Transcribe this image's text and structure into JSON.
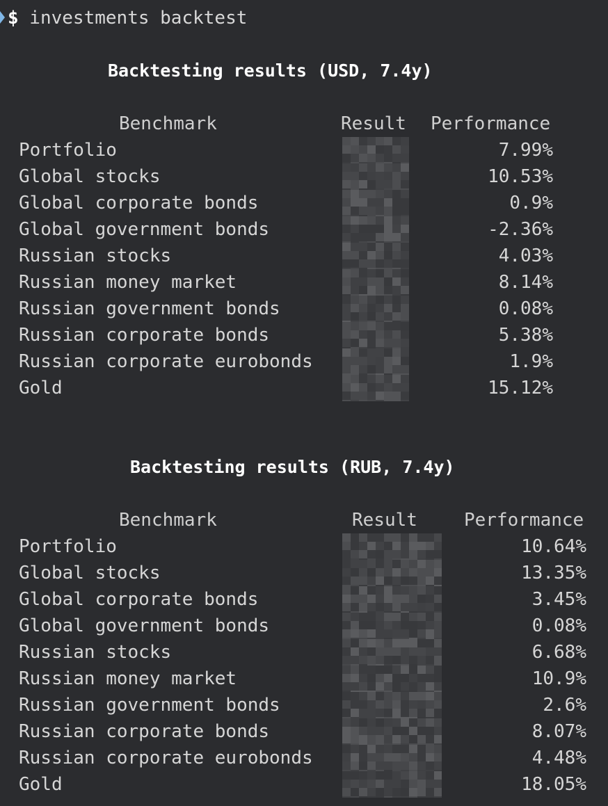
{
  "prompt": {
    "symbol": "$",
    "command": " investments backtest"
  },
  "tables": [
    {
      "title": "Backtesting results (USD, 7.4y)",
      "columns": {
        "benchmark": "Benchmark",
        "result": "Result",
        "performance": "Performance"
      },
      "result_redacted": true,
      "rows": [
        {
          "benchmark": "Portfolio",
          "performance": "7.99%"
        },
        {
          "benchmark": "Global stocks",
          "performance": "10.53%"
        },
        {
          "benchmark": "Global corporate bonds",
          "performance": "0.9%"
        },
        {
          "benchmark": "Global government bonds",
          "performance": "-2.36%"
        },
        {
          "benchmark": "Russian stocks",
          "performance": "4.03%"
        },
        {
          "benchmark": "Russian money market",
          "performance": "8.14%"
        },
        {
          "benchmark": "Russian government bonds",
          "performance": "0.08%"
        },
        {
          "benchmark": "Russian corporate bonds",
          "performance": "5.38%"
        },
        {
          "benchmark": "Russian corporate eurobonds",
          "performance": "1.9%"
        },
        {
          "benchmark": "Gold",
          "performance": "15.12%"
        }
      ]
    },
    {
      "title": "Backtesting results (RUB, 7.4y)",
      "columns": {
        "benchmark": "Benchmark",
        "result": "Result",
        "performance": "Performance"
      },
      "result_redacted": true,
      "rows": [
        {
          "benchmark": "Portfolio",
          "performance": "10.64%"
        },
        {
          "benchmark": "Global stocks",
          "performance": "13.35%"
        },
        {
          "benchmark": "Global corporate bonds",
          "performance": "3.45%"
        },
        {
          "benchmark": "Global government bonds",
          "performance": "0.08%"
        },
        {
          "benchmark": "Russian stocks",
          "performance": "6.68%"
        },
        {
          "benchmark": "Russian money market",
          "performance": "10.9%"
        },
        {
          "benchmark": "Russian government bonds",
          "performance": "2.6%"
        },
        {
          "benchmark": "Russian corporate bonds",
          "performance": "8.07%"
        },
        {
          "benchmark": "Russian corporate eurobonds",
          "performance": "4.48%"
        },
        {
          "benchmark": "Gold",
          "performance": "18.05%"
        }
      ]
    }
  ],
  "colors": {
    "background": "#2b2c2f",
    "text": "#d6d6d6",
    "title": "#ffffff",
    "prompt_marker": "#7fb6e6"
  }
}
